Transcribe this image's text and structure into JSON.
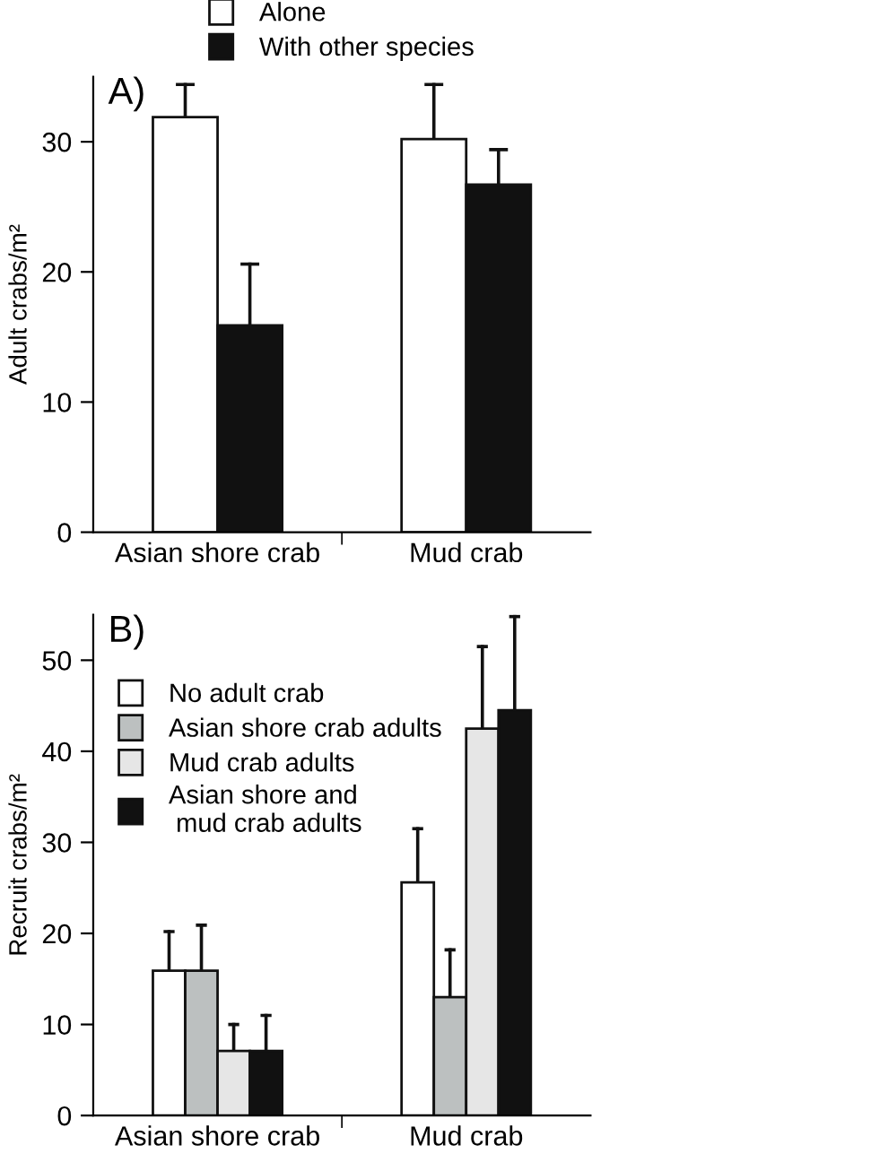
{
  "chart_data": [
    {
      "type": "bar",
      "categories": [
        "Asian shore crab",
        "Mud crab"
      ],
      "ylabel": "Adult crabs/m²",
      "annotations": [
        "A)"
      ],
      "ylim": [
        0,
        35
      ],
      "yticks": [
        0,
        10,
        20,
        30
      ],
      "legend": "top",
      "grid": false,
      "series": [
        {
          "name": "Alone",
          "color": "#ffffff",
          "values": [
            31.9,
            30.2
          ],
          "errors": [
            [
              31.9,
              34.4
            ],
            [
              30.2,
              34.4
            ]
          ]
        },
        {
          "name": "With other species",
          "color": "#111111",
          "values": [
            15.9,
            26.7
          ],
          "errors": [
            [
              15.9,
              20.6
            ],
            [
              26.7,
              29.4
            ]
          ]
        }
      ]
    },
    {
      "type": "bar",
      "categories": [
        "Asian shore crab",
        "Mud crab"
      ],
      "ylabel": "Recruit crabs/m²",
      "annotations": [
        "B)"
      ],
      "ylim": [
        0,
        55
      ],
      "yticks": [
        0,
        10,
        20,
        30,
        40,
        50
      ],
      "legend": "top left",
      "grid": false,
      "series": [
        {
          "name": "No adult crab",
          "color": "#ffffff",
          "values": [
            15.9,
            25.6
          ],
          "errors": [
            [
              15.9,
              20.2
            ],
            [
              25.6,
              31.5
            ]
          ]
        },
        {
          "name": "Asian shore crab adults",
          "color": "#bcc0c0",
          "values": [
            15.9,
            13.0
          ],
          "errors": [
            [
              15.9,
              20.9
            ],
            [
              13.0,
              18.2
            ]
          ]
        },
        {
          "name": "Mud crab adults",
          "color": "#e6e6e6",
          "values": [
            7.1,
            42.5
          ],
          "errors": [
            [
              7.1,
              10.0
            ],
            [
              42.5,
              51.5
            ]
          ]
        },
        {
          "name": "Asian shore and\n mud crab adults",
          "color": "#111111",
          "values": [
            7.1,
            44.5
          ],
          "errors": [
            [
              7.1,
              11.0
            ],
            [
              44.5,
              54.8
            ]
          ]
        }
      ]
    }
  ]
}
